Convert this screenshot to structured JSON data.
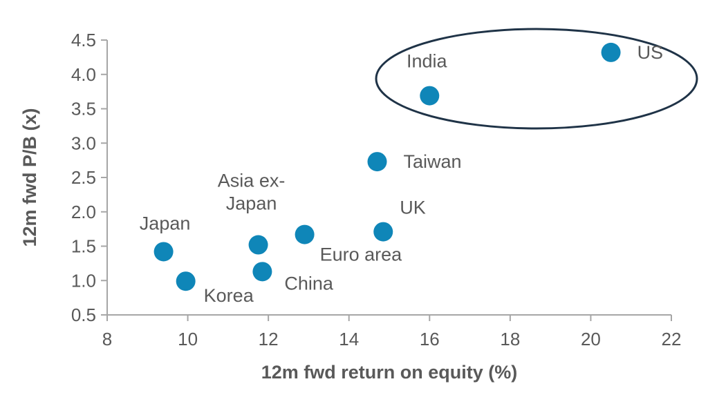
{
  "chart_data": {
    "type": "scatter",
    "xlabel": "12m fwd return on equity (%)",
    "ylabel": "12m fwd P/B (x)",
    "xlim": [
      8,
      22
    ],
    "ylim": [
      0.5,
      4.5
    ],
    "x_ticks": [
      8,
      10,
      12,
      14,
      16,
      18,
      20,
      22
    ],
    "y_ticks": [
      "0.5",
      "1.0",
      "1.5",
      "2.0",
      "2.5",
      "3.0",
      "3.5",
      "4.0",
      "4.5"
    ],
    "grid": false,
    "marker_color": "#0F86B8",
    "axis_color": "#A6A6A6",
    "highlight_color": "#1F3347",
    "points": [
      {
        "label": [
          "Japan"
        ],
        "x": 9.4,
        "y": 1.42,
        "label_pos": "above"
      },
      {
        "label": [
          "Korea"
        ],
        "x": 9.95,
        "y": 0.99,
        "label_pos": "below-right"
      },
      {
        "label": [
          "Asia ex-",
          "Japan"
        ],
        "x": 11.75,
        "y": 1.52,
        "label_pos": "above-left"
      },
      {
        "label": [
          "China"
        ],
        "x": 11.85,
        "y": 1.13,
        "label_pos": "below-right"
      },
      {
        "label": [
          "Euro area"
        ],
        "x": 12.9,
        "y": 1.67,
        "label_pos": "below-right"
      },
      {
        "label": [
          "UK"
        ],
        "x": 14.85,
        "y": 1.71,
        "label_pos": "above-right"
      },
      {
        "label": [
          "Taiwan"
        ],
        "x": 14.7,
        "y": 2.73,
        "label_pos": "right"
      },
      {
        "label": [
          "India"
        ],
        "x": 16.0,
        "y": 3.69,
        "label_pos": "above-left"
      },
      {
        "label": [
          "US"
        ],
        "x": 20.5,
        "y": 4.32,
        "label_pos": "right"
      }
    ],
    "highlight": {
      "type": "ellipse",
      "encloses": [
        "India",
        "US"
      ]
    }
  }
}
